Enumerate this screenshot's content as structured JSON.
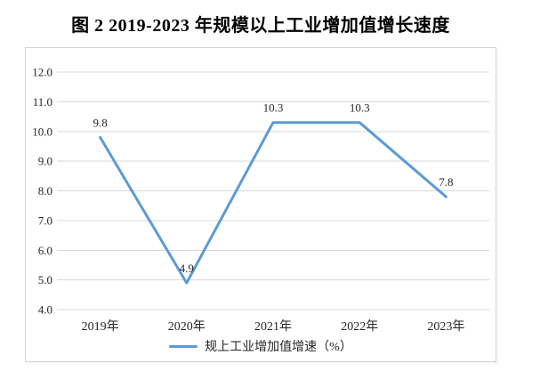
{
  "title": "图 2  2019-2023 年规模以上工业增加值增长速度",
  "chart_data": {
    "type": "line",
    "categories": [
      "2019年",
      "2020年",
      "2021年",
      "2022年",
      "2023年"
    ],
    "values": [
      9.8,
      4.9,
      10.3,
      10.3,
      7.8
    ],
    "legend": "规上工业增加值增速（%）",
    "title": "图 2  2019-2023 年规模以上工业增加值增长速度",
    "xlabel": "",
    "ylabel": "",
    "ylim": [
      4.0,
      12.0
    ],
    "ytick_step": 1.0,
    "grid": "horizontal",
    "legend_position": "bottom",
    "data_labels": true,
    "line_color": "#5B9BD5",
    "grid_color": "#D9D9D9",
    "frame_color": "#D6D6D6",
    "text_color": "#262626"
  }
}
